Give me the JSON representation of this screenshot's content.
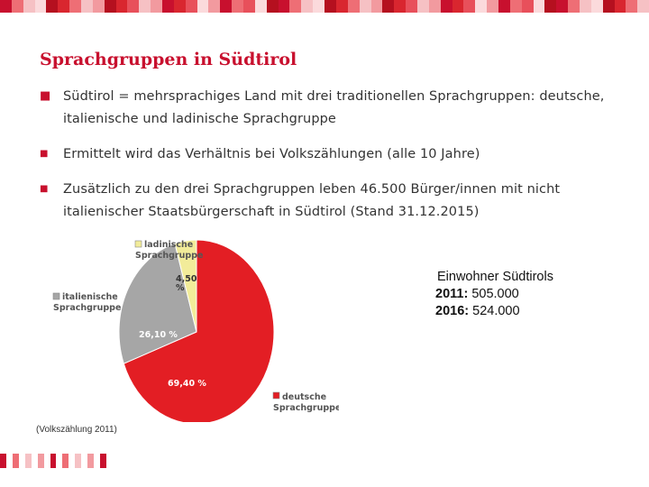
{
  "slide": {
    "title": "Sprachgruppen in Südtirol",
    "bullets": [
      {
        "text": "Südtirol = mehrsprachiges Land mit drei traditionellen Sprachgruppen: deutsche, italienische und ladinische Sprachgruppe"
      },
      {
        "text": "Ermittelt wird das Verhältnis bei Volkszählungen (alle 10 Jahre)"
      },
      {
        "text": "Zusätzlich zu den drei Sprachgruppen leben 46.500 Bürger/innen mit nicht italienischer Staatsbürgerschaft in Südtirol (Stand 31.12.2015)"
      }
    ],
    "info": {
      "heading": "Einwohner Südtirols",
      "rows": [
        {
          "year": "2011:",
          "value": "505.000"
        },
        {
          "year": "2016:",
          "value": "524.000"
        }
      ]
    },
    "footnote": "(Volkszählung 2011)"
  },
  "colors": {
    "accent": "#c8102e",
    "deutsch": "#e31e24",
    "italienisch": "#a6a6a6",
    "ladinisch": "#f2ec9a"
  },
  "chart_data": {
    "type": "pie",
    "title": "",
    "slices": [
      {
        "name": "deutsche Sprachgruppe",
        "name_lines": [
          "deutsche",
          "Sprachgruppe"
        ],
        "value": 69.4,
        "label": "69,40 %",
        "label_lines": [
          "69,40 %"
        ],
        "color": "#e31e24"
      },
      {
        "name": "italienische Sprachgruppe",
        "name_lines": [
          "italienische",
          "Sprachgruppe"
        ],
        "value": 26.1,
        "label": "26,10 %",
        "label_lines": [
          "26,10 %"
        ],
        "color": "#a6a6a6"
      },
      {
        "name": "ladinische Sprachgruppe",
        "name_lines": [
          "ladinische",
          "Sprachgruppe"
        ],
        "value": 4.5,
        "label": "4,50 %",
        "label_lines": [
          "4,50",
          "%"
        ],
        "color": "#f2ec9a"
      }
    ]
  }
}
